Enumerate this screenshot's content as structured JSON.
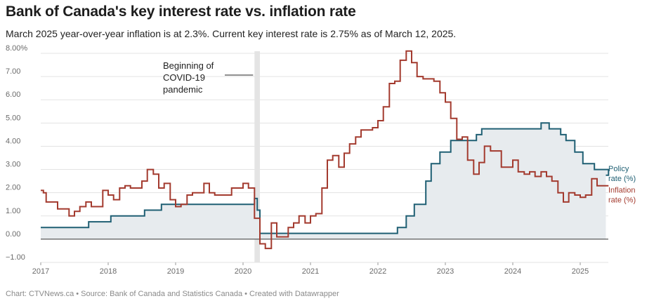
{
  "chart_data": {
    "type": "line",
    "title": "Bank of Canada's key interest rate vs. inflation rate",
    "subtitle": "March 2025 year-over-year inflation is at 2.3%. Current key interest rate is 2.75% as of March 12, 2025.",
    "footer": "Chart: CTVNews.ca • Source: Bank of Canada and Statistics Canada • Created with Datawrapper",
    "xlim": [
      2017.0,
      2025.42
    ],
    "ylim": [
      -1.0,
      8.0
    ],
    "x_ticks": [
      {
        "value": 2017,
        "label": "2017"
      },
      {
        "value": 2018,
        "label": "2018"
      },
      {
        "value": 2019,
        "label": "2019"
      },
      {
        "value": 2020,
        "label": "2020"
      },
      {
        "value": 2021,
        "label": "2021"
      },
      {
        "value": 2022,
        "label": "2022"
      },
      {
        "value": 2023,
        "label": "2023"
      },
      {
        "value": 2024,
        "label": "2024"
      },
      {
        "value": 2025,
        "label": "2025"
      }
    ],
    "y_ticks": [
      {
        "value": 8,
        "label": "8.00%"
      },
      {
        "value": 7,
        "label": "7.00"
      },
      {
        "value": 6,
        "label": "6.00"
      },
      {
        "value": 5,
        "label": "5.00"
      },
      {
        "value": 4,
        "label": "4.00"
      },
      {
        "value": 3,
        "label": "3.00"
      },
      {
        "value": 2,
        "label": "2.00"
      },
      {
        "value": 1,
        "label": "1.00"
      },
      {
        "value": 0,
        "label": "0.00"
      },
      {
        "value": -1,
        "label": "−1.00"
      }
    ],
    "annotation": {
      "lines": [
        "Beginning of",
        "COVID-19",
        "pandemic"
      ],
      "x_start": 2020.17,
      "x_end": 2020.25
    },
    "series": [
      {
        "name": "Policy rate (%)",
        "label_lines": [
          "Policy",
          "rate (%)"
        ],
        "color": "#1f5f73",
        "fill": "#e7ebee",
        "step": true,
        "x": [
          2017.0,
          2017.54,
          2017.71,
          2018.04,
          2018.54,
          2018.79,
          2020.17,
          2020.21,
          2020.25,
          2022.17,
          2022.29,
          2022.42,
          2022.54,
          2022.71,
          2022.79,
          2022.92,
          2023.08,
          2023.46,
          2023.54,
          2024.42,
          2024.54,
          2024.71,
          2024.79,
          2024.92,
          2025.04,
          2025.21,
          2025.42
        ],
        "values": [
          0.5,
          0.5,
          0.75,
          1.0,
          1.25,
          1.5,
          1.75,
          1.25,
          0.25,
          0.25,
          0.5,
          1.0,
          1.5,
          2.5,
          3.25,
          3.75,
          4.25,
          4.5,
          4.75,
          5.0,
          4.75,
          4.5,
          4.25,
          3.75,
          3.25,
          3.0,
          2.75
        ]
      },
      {
        "name": "Inflation rate (%)",
        "label_lines": [
          "Inflation",
          "rate (%)"
        ],
        "color": "#a33a2e",
        "step": true,
        "x": [
          2017.0,
          2017.04,
          2017.08,
          2017.17,
          2017.25,
          2017.33,
          2017.42,
          2017.5,
          2017.58,
          2017.67,
          2017.75,
          2017.83,
          2017.92,
          2018.0,
          2018.08,
          2018.17,
          2018.25,
          2018.33,
          2018.42,
          2018.5,
          2018.58,
          2018.67,
          2018.75,
          2018.83,
          2018.92,
          2019.0,
          2019.08,
          2019.17,
          2019.25,
          2019.33,
          2019.42,
          2019.5,
          2019.58,
          2019.67,
          2019.75,
          2019.83,
          2019.92,
          2020.0,
          2020.08,
          2020.17,
          2020.25,
          2020.33,
          2020.42,
          2020.5,
          2020.58,
          2020.67,
          2020.75,
          2020.83,
          2020.92,
          2021.0,
          2021.08,
          2021.17,
          2021.25,
          2021.33,
          2021.42,
          2021.5,
          2021.58,
          2021.67,
          2021.75,
          2021.83,
          2021.92,
          2022.0,
          2022.08,
          2022.17,
          2022.25,
          2022.33,
          2022.42,
          2022.5,
          2022.58,
          2022.67,
          2022.75,
          2022.83,
          2022.92,
          2023.0,
          2023.08,
          2023.17,
          2023.25,
          2023.33,
          2023.42,
          2023.5,
          2023.58,
          2023.67,
          2023.75,
          2023.83,
          2023.92,
          2024.0,
          2024.08,
          2024.17,
          2024.25,
          2024.33,
          2024.42,
          2024.5,
          2024.58,
          2024.67,
          2024.75,
          2024.83,
          2024.92,
          2025.0,
          2025.08,
          2025.17,
          2025.25,
          2025.33
        ],
        "values": [
          2.1,
          2.0,
          1.6,
          1.6,
          1.3,
          1.3,
          1.0,
          1.2,
          1.4,
          1.6,
          1.4,
          1.4,
          2.1,
          1.9,
          1.7,
          2.2,
          2.3,
          2.2,
          2.2,
          2.5,
          3.0,
          2.8,
          2.2,
          2.4,
          1.7,
          1.4,
          1.5,
          1.9,
          2.0,
          2.0,
          2.4,
          2.0,
          1.9,
          1.9,
          1.9,
          2.2,
          2.2,
          2.4,
          2.2,
          0.9,
          -0.2,
          -0.4,
          0.7,
          0.1,
          0.1,
          0.5,
          0.7,
          1.0,
          0.7,
          1.0,
          1.1,
          2.2,
          3.4,
          3.6,
          3.1,
          3.7,
          4.1,
          4.4,
          4.7,
          4.7,
          4.8,
          5.1,
          5.7,
          6.7,
          6.8,
          7.7,
          8.1,
          7.6,
          7.0,
          6.9,
          6.9,
          6.8,
          6.3,
          5.9,
          5.2,
          4.3,
          4.4,
          3.4,
          2.8,
          3.3,
          4.0,
          3.8,
          3.8,
          3.1,
          3.1,
          3.4,
          2.9,
          2.8,
          2.9,
          2.7,
          2.9,
          2.7,
          2.5,
          2.0,
          1.6,
          2.0,
          1.9,
          1.8,
          1.9,
          2.6,
          2.3,
          2.3
        ]
      }
    ]
  }
}
